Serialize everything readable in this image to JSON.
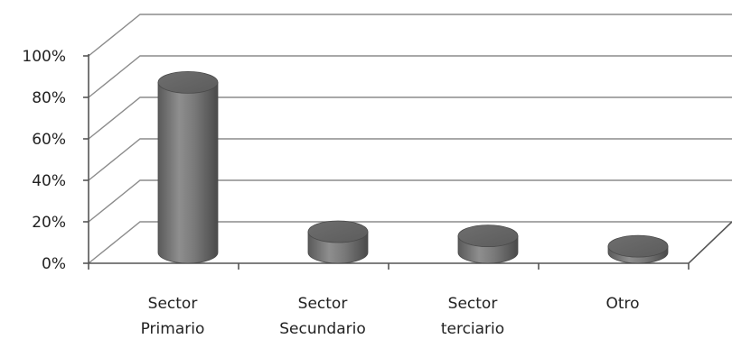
{
  "chart_data": {
    "type": "bar",
    "style": "3d-cylinder",
    "categories": [
      [
        "Sector",
        "Primario"
      ],
      [
        "Sector",
        "Secundario"
      ],
      [
        "Sector",
        "terciario"
      ],
      [
        "Otro"
      ]
    ],
    "values": [
      82,
      10,
      8,
      3
    ],
    "y_ticks": [
      "0%",
      "20%",
      "40%",
      "60%",
      "80%",
      "100%"
    ],
    "ylim": [
      0,
      100
    ],
    "unit": "%",
    "grid": true,
    "legend": "none",
    "title": "",
    "xlabel": "",
    "ylabel": "",
    "colors": {
      "bar": "#7a7a7a",
      "grid": "#8c8c8c",
      "text": "#222222"
    }
  }
}
